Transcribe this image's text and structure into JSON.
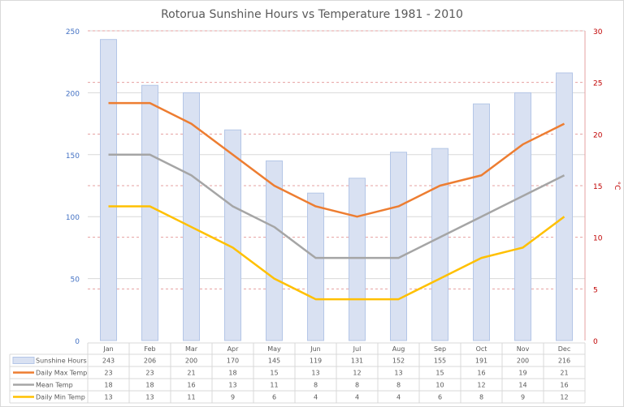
{
  "chart_data": {
    "type": "bar+line",
    "title": "Rotorua Sunshine Hours vs Temperature 1981 - 2010",
    "categories": [
      "Jan",
      "Feb",
      "Mar",
      "Apr",
      "May",
      "Jun",
      "Jul",
      "Aug",
      "Sep",
      "Oct",
      "Nov",
      "Dec"
    ],
    "left_axis": {
      "label": "",
      "ylim": [
        0,
        250
      ],
      "ticks": [
        0,
        50,
        100,
        150,
        200,
        250
      ],
      "color": "#4472c4"
    },
    "right_axis": {
      "label": "°C",
      "ylim": [
        0,
        30
      ],
      "ticks": [
        0,
        5,
        10,
        15,
        20,
        25,
        30
      ],
      "color": "#c00000"
    },
    "grid": true,
    "legend": "data-table",
    "series": [
      {
        "name": "Sunshine Hours",
        "type": "bar",
        "axis": "left",
        "color": "#d9e1f2",
        "values": [
          243,
          206,
          200,
          170,
          145,
          119,
          131,
          152,
          155,
          191,
          200,
          216
        ]
      },
      {
        "name": "Daily Max Temp",
        "type": "line",
        "axis": "right",
        "color": "#ed7d31",
        "values": [
          23,
          23,
          21,
          18,
          15,
          13,
          12,
          13,
          15,
          16,
          19,
          21
        ]
      },
      {
        "name": "Mean Temp",
        "type": "line",
        "axis": "right",
        "color": "#a5a5a5",
        "values": [
          18,
          18,
          16,
          13,
          11,
          8,
          8,
          8,
          10,
          12,
          14,
          16
        ]
      },
      {
        "name": "Daily Min Temp",
        "type": "line",
        "axis": "right",
        "color": "#ffc000",
        "values": [
          13,
          13,
          11,
          9,
          6,
          4,
          4,
          4,
          6,
          8,
          9,
          12
        ]
      }
    ]
  }
}
